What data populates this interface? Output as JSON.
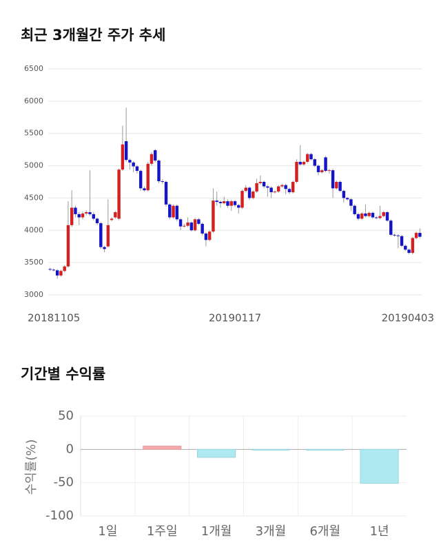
{
  "chart_data": [
    {
      "type": "candlestick",
      "title": "최근 3개월간 주가 추세",
      "categories": [
        "20181105",
        null,
        null,
        null,
        null,
        null,
        null,
        null,
        null,
        null,
        null,
        null,
        null,
        null,
        null,
        null,
        null,
        null,
        null,
        null,
        null,
        null,
        null,
        null,
        null,
        null,
        null,
        null,
        null,
        null,
        null,
        null,
        null,
        null,
        null,
        null,
        null,
        null,
        null,
        null,
        null,
        null,
        null,
        null,
        null,
        null,
        null,
        null,
        null,
        null,
        null,
        "20190117",
        null,
        null,
        null,
        null,
        null,
        null,
        null,
        null,
        null,
        null,
        null,
        null,
        null,
        null,
        null,
        null,
        null,
        null,
        null,
        null,
        null,
        null,
        null,
        null,
        null,
        null,
        null,
        null,
        null,
        null,
        null,
        null,
        null,
        null,
        null,
        null,
        null,
        null,
        null,
        null,
        null,
        null,
        null,
        null,
        null,
        null,
        null,
        null,
        null,
        null,
        "20190403"
      ],
      "open": [
        3400,
        3390,
        3380,
        3300,
        3370,
        3440,
        4080,
        4350,
        4250,
        4200,
        4260,
        4280,
        4250,
        4180,
        4110,
        3740,
        3750,
        4160,
        4200,
        4180,
        4940,
        5380,
        5090,
        5050,
        4990,
        4920,
        4650,
        4620,
        5030,
        5240,
        5080,
        4760,
        4750,
        4400,
        4200,
        4380,
        4170,
        4060,
        4070,
        4120,
        4000,
        4170,
        4100,
        3950,
        3850,
        3980,
        4460,
        4440,
        4420,
        4450,
        4380,
        4450,
        4390,
        4350,
        4610,
        4660,
        4500,
        4600,
        4730,
        4750,
        4680,
        4660,
        4590,
        4600,
        4680,
        4700,
        4640,
        4590,
        4750,
        5060,
        5020,
        5060,
        5180,
        5100,
        5000,
        4900,
        5130,
        4920,
        4930,
        4650,
        4750,
        4610,
        4500,
        4480,
        4380,
        4250,
        4180,
        4260,
        4220,
        4270,
        4200,
        4190,
        4220,
        4280,
        4150,
        3930,
        3920,
        3910,
        3760,
        3700,
        3650,
        3880,
        3960
      ],
      "high": [
        3420,
        3410,
        3400,
        3390,
        3460,
        4450,
        4620,
        4380,
        4280,
        4290,
        4310,
        4930,
        4280,
        4200,
        4130,
        3760,
        4480,
        4200,
        4300,
        4960,
        5620,
        5900,
        5110,
        5070,
        5010,
        4940,
        4680,
        5060,
        5210,
        5260,
        5100,
        4790,
        4770,
        4420,
        4400,
        4400,
        4190,
        4100,
        4200,
        4140,
        4190,
        4190,
        4120,
        3970,
        4000,
        4650,
        4600,
        4460,
        4520,
        4480,
        4470,
        4470,
        4410,
        4630,
        4700,
        4680,
        4620,
        4800,
        4850,
        4770,
        4700,
        4680,
        4620,
        4700,
        4720,
        4720,
        4660,
        4770,
        5100,
        5320,
        5080,
        5200,
        5200,
        5120,
        5020,
        4950,
        5150,
        4950,
        4950,
        4770,
        4770,
        4630,
        4520,
        4500,
        4400,
        4270,
        4280,
        4400,
        4290,
        4290,
        4220,
        4380,
        4300,
        4300,
        4170,
        3950,
        3940,
        3930,
        3780,
        3720,
        3900,
        3980,
        4030
      ],
      "low": [
        3370,
        3360,
        3250,
        3280,
        3350,
        3420,
        4050,
        4200,
        4080,
        4170,
        4230,
        4220,
        4150,
        4080,
        3710,
        3660,
        3730,
        4140,
        4180,
        4160,
        4920,
        5060,
        4940,
        4900,
        4880,
        4610,
        4600,
        4600,
        5000,
        5050,
        4730,
        4720,
        4370,
        4170,
        4180,
        4140,
        4000,
        4040,
        4050,
        3980,
        3980,
        4080,
        3920,
        3750,
        3830,
        3960,
        4380,
        4350,
        4400,
        4350,
        4300,
        4360,
        4260,
        4330,
        4590,
        4470,
        4480,
        4580,
        4710,
        4650,
        4520,
        4500,
        4570,
        4580,
        4660,
        4560,
        4560,
        4570,
        4730,
        5000,
        5000,
        5040,
        5080,
        4980,
        4850,
        4880,
        4900,
        4880,
        4500,
        4630,
        4590,
        4430,
        4460,
        4300,
        4230,
        4150,
        4160,
        4200,
        4200,
        4180,
        4170,
        4170,
        4200,
        4130,
        3910,
        3900,
        3720,
        3740,
        3680,
        3630,
        3630,
        3860,
        3880
      ],
      "close": [
        3390,
        3380,
        3300,
        3370,
        3440,
        4080,
        4350,
        4250,
        4200,
        4260,
        4280,
        4250,
        4180,
        4110,
        3740,
        3710,
        4080,
        4180,
        4280,
        4940,
        5330,
        5090,
        5050,
        4990,
        4920,
        4650,
        4620,
        5030,
        5180,
        5080,
        4760,
        4750,
        4400,
        4200,
        4380,
        4170,
        4060,
        4070,
        4120,
        4000,
        4170,
        4100,
        3950,
        3850,
        3980,
        4460,
        4440,
        4420,
        4450,
        4380,
        4450,
        4390,
        4350,
        4610,
        4660,
        4500,
        4600,
        4730,
        4750,
        4680,
        4660,
        4590,
        4600,
        4680,
        4700,
        4640,
        4590,
        4750,
        5060,
        5020,
        5060,
        5180,
        5100,
        5000,
        4900,
        4930,
        4920,
        4930,
        4650,
        4750,
        4610,
        4500,
        4480,
        4380,
        4250,
        4180,
        4260,
        4220,
        4270,
        4200,
        4190,
        4220,
        4280,
        4150,
        3930,
        3920,
        3910,
        3760,
        3700,
        3650,
        3880,
        3960,
        3900
      ],
      "up_color": "#d42020",
      "down_color": "#1414c8",
      "ylim": [
        3000,
        6500
      ],
      "yticks": [
        3000,
        3500,
        4000,
        4500,
        5000,
        5500,
        6000,
        6500
      ],
      "grid": true
    },
    {
      "type": "bar",
      "title": "기간별 수익률",
      "ylabel": "수익률(%)",
      "categories": [
        "1일",
        "1주일",
        "1개월",
        "3개월",
        "6개월",
        "1년"
      ],
      "values": [
        0,
        5,
        -12,
        -1,
        -1,
        -51
      ],
      "positive_color": "#f4a9a8",
      "negative_color": "#aee8f0",
      "ylim": [
        -100,
        50
      ],
      "yticks": [
        -100,
        -50,
        0,
        50
      ],
      "grid": true
    }
  ]
}
